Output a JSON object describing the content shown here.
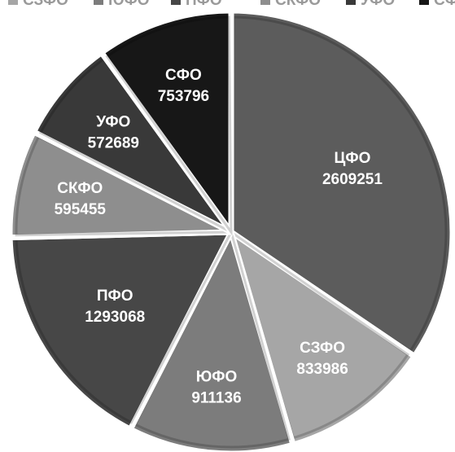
{
  "chart_data": {
    "type": "pie",
    "categories": [
      "ЦФО",
      "СЗФО",
      "ЮФО",
      "ПФО",
      "СКФО",
      "УФО",
      "СФО"
    ],
    "values": [
      2609251,
      833986,
      911136,
      1293068,
      595455,
      572689,
      753796
    ],
    "colors": [
      "#5c5c5c",
      "#a6a6a6",
      "#7c7c7c",
      "#474747",
      "#8e8e8e",
      "#393939",
      "#171717"
    ],
    "legend": {
      "placement": "top",
      "entries": [
        "СЗФО",
        "ЮФО",
        "ПФО",
        "СКФО",
        "УФО",
        "СФО"
      ],
      "colors": [
        "#a6a6a6",
        "#7c7c7c",
        "#474747",
        "#8e8e8e",
        "#393939",
        "#171717"
      ]
    },
    "start_angle_deg": 0,
    "direction": "clockwise"
  }
}
